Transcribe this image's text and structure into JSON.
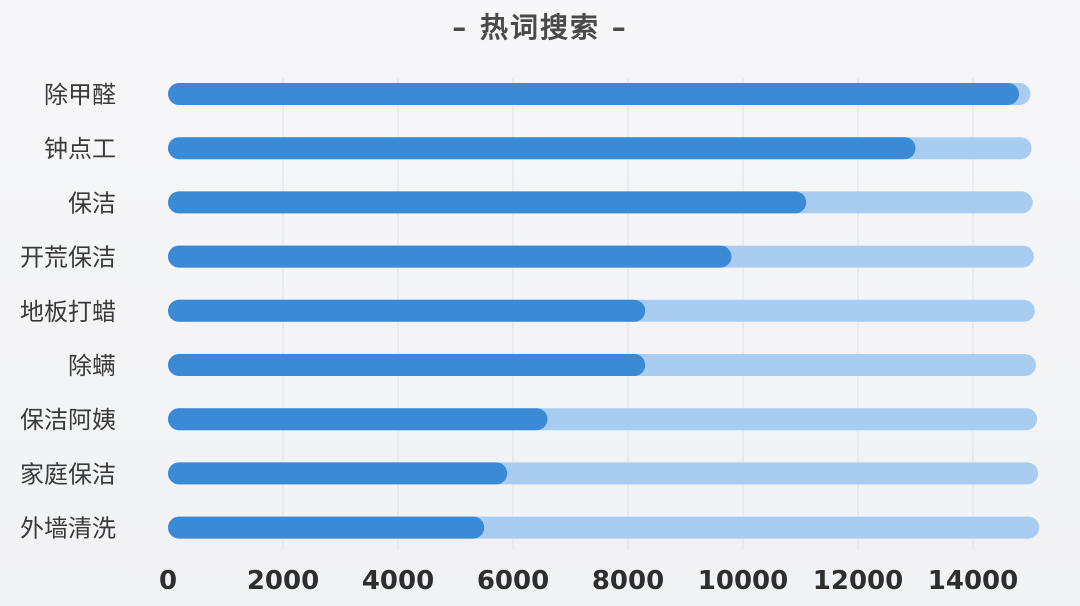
{
  "chart_data": {
    "type": "bar",
    "orientation": "horizontal",
    "title": "– 热词搜索 –",
    "categories": [
      "除甲醛",
      "钟点工",
      "保洁",
      "开荒保洁",
      "地板打蜡",
      "除螨",
      "保洁阿姨",
      "家庭保洁",
      "外墙清洗"
    ],
    "values": [
      14800,
      13000,
      11100,
      9800,
      8300,
      8300,
      6600,
      5900,
      5500
    ],
    "background_max": 15000,
    "xlim": [
      0,
      15000
    ],
    "xticks": [
      0,
      2000,
      4000,
      6000,
      8000,
      10000,
      12000,
      14000
    ],
    "xtick_labels": [
      "0",
      "2000",
      "4000",
      "6000",
      "8000",
      "10000",
      "12000",
      "14000"
    ],
    "grid": "vertical",
    "xlabel": "",
    "ylabel": "",
    "colors": {
      "bar": "#3a8ad6",
      "track": "#a9cdf0",
      "grid": "#dfe2e8"
    }
  }
}
